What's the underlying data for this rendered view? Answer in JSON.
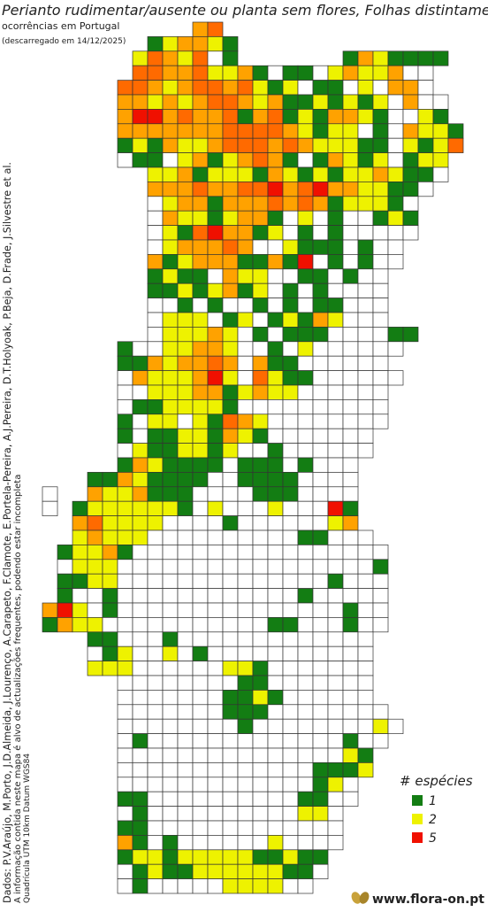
{
  "header": {
    "title": "Perianto rudimentar/ausente ou planta sem flores, Folhas distintamen",
    "subtitle": "ocorrências em Portugal",
    "date": "(descarregado em 14/12/2025)"
  },
  "credits": [
    "Dados: P.V.Araújo, M.Porto, J.D.Almeida, J.Lourenço, A.Carapeto, F.Clamote, E.Portela-Pereira, A.J.Pereira, D.T.Holyoak, P.Beja, D.Frade, J.Silvestre et al.",
    "A informação contida neste mapa é alvo de actualizações frequentes, podendo estar incompleta",
    "Quadrícula UTM 10km Datum WGS84"
  ],
  "legend": {
    "title": "# espécies",
    "items": [
      {
        "value": 1,
        "color": "#137d13"
      },
      {
        "value": 2,
        "color": "#eef200"
      },
      {
        "value": 5,
        "color": "#f01000"
      }
    ]
  },
  "map": {
    "palette": {
      "0": "#ffffff",
      "1": "#137d13",
      "2": "#eef200",
      "3": "#ffa200",
      "4": "#ff6a00",
      "5": "#f01000"
    },
    "grid": [
      [
        null,
        null,
        null,
        null,
        null,
        null,
        null,
        null,
        null,
        null,
        3,
        4
      ],
      [
        null,
        null,
        null,
        null,
        null,
        null,
        null,
        1,
        2,
        3,
        3,
        2,
        1
      ],
      [
        null,
        null,
        null,
        null,
        null,
        null,
        2,
        4,
        3,
        2,
        4,
        0,
        1,
        null,
        null,
        null,
        null,
        null,
        null,
        null,
        1,
        3,
        2,
        1,
        1,
        1,
        1
      ],
      [
        null,
        null,
        null,
        null,
        null,
        null,
        4,
        4,
        3,
        3,
        4,
        2,
        2,
        3,
        1,
        0,
        1,
        1,
        0,
        2,
        3,
        2,
        2,
        3,
        0,
        0
      ],
      [
        null,
        null,
        null,
        null,
        null,
        4,
        4,
        3,
        2,
        3,
        4,
        4,
        3,
        4,
        2,
        1,
        2,
        0,
        1,
        1,
        0,
        2,
        0,
        3,
        3,
        0
      ],
      [
        null,
        null,
        null,
        null,
        null,
        3,
        3,
        2,
        3,
        2,
        3,
        4,
        4,
        3,
        2,
        3,
        1,
        1,
        2,
        1,
        2,
        1,
        2,
        0,
        3,
        0,
        0
      ],
      [
        null,
        null,
        null,
        null,
        null,
        3,
        5,
        5,
        3,
        4,
        3,
        3,
        4,
        1,
        3,
        4,
        1,
        2,
        1,
        3,
        3,
        2,
        1,
        0,
        0,
        2,
        1
      ],
      [
        null,
        null,
        null,
        null,
        null,
        3,
        3,
        3,
        3,
        3,
        3,
        3,
        4,
        4,
        4,
        4,
        3,
        2,
        1,
        2,
        2,
        0,
        1,
        0,
        3,
        2,
        2,
        1
      ],
      [
        null,
        null,
        null,
        null,
        null,
        1,
        2,
        1,
        3,
        2,
        2,
        3,
        4,
        4,
        4,
        3,
        4,
        3,
        2,
        2,
        2,
        1,
        1,
        0,
        2,
        1,
        2,
        4
      ],
      [
        null,
        null,
        null,
        null,
        null,
        0,
        1,
        1,
        0,
        2,
        3,
        1,
        2,
        3,
        4,
        3,
        1,
        0,
        1,
        3,
        2,
        1,
        2,
        0,
        1,
        2,
        2
      ],
      [
        null,
        null,
        null,
        null,
        null,
        null,
        null,
        2,
        2,
        3,
        1,
        2,
        2,
        2,
        1,
        3,
        2,
        1,
        2,
        1,
        2,
        2,
        3,
        2,
        1,
        1,
        0
      ],
      [
        null,
        null,
        null,
        null,
        null,
        null,
        null,
        3,
        3,
        3,
        4,
        3,
        3,
        4,
        4,
        5,
        3,
        4,
        5,
        3,
        3,
        2,
        2,
        1,
        1,
        0
      ],
      [
        null,
        null,
        null,
        null,
        null,
        null,
        null,
        0,
        2,
        3,
        3,
        1,
        3,
        3,
        3,
        4,
        3,
        4,
        3,
        1,
        2,
        2,
        2,
        1,
        0
      ],
      [
        null,
        null,
        null,
        null,
        null,
        null,
        null,
        0,
        3,
        2,
        2,
        1,
        2,
        3,
        3,
        1,
        0,
        2,
        0,
        1,
        0,
        0,
        1,
        2,
        1
      ],
      [
        null,
        null,
        null,
        null,
        null,
        null,
        null,
        0,
        2,
        1,
        4,
        5,
        3,
        3,
        1,
        2,
        0,
        1,
        0,
        1,
        0,
        0,
        0,
        0,
        0
      ],
      [
        null,
        null,
        null,
        null,
        null,
        null,
        null,
        0,
        2,
        3,
        3,
        3,
        4,
        3,
        0,
        0,
        2,
        1,
        1,
        1,
        0,
        1,
        0,
        0
      ],
      [
        null,
        null,
        null,
        null,
        null,
        null,
        null,
        3,
        1,
        2,
        3,
        3,
        3,
        1,
        1,
        3,
        1,
        5,
        0,
        1,
        0,
        1,
        0,
        0
      ],
      [
        null,
        null,
        null,
        null,
        null,
        null,
        null,
        1,
        2,
        1,
        1,
        0,
        3,
        2,
        2,
        0,
        0,
        1,
        1,
        0,
        1,
        0,
        0
      ],
      [
        null,
        null,
        null,
        null,
        null,
        null,
        null,
        1,
        1,
        2,
        1,
        2,
        3,
        1,
        2,
        0,
        1,
        0,
        1,
        0,
        0,
        0,
        0
      ],
      [
        null,
        null,
        null,
        null,
        null,
        null,
        null,
        0,
        0,
        1,
        0,
        1,
        0,
        0,
        1,
        0,
        1,
        0,
        1,
        1,
        0,
        0,
        0
      ],
      [
        null,
        null,
        null,
        null,
        null,
        null,
        null,
        0,
        2,
        2,
        2,
        0,
        1,
        2,
        0,
        1,
        2,
        1,
        3,
        2,
        0,
        0,
        0
      ],
      [
        null,
        null,
        null,
        null,
        null,
        null,
        null,
        0,
        2,
        2,
        2,
        3,
        2,
        0,
        1,
        0,
        1,
        1,
        1,
        0,
        0,
        0,
        0,
        1,
        1
      ],
      [
        null,
        null,
        null,
        null,
        null,
        1,
        0,
        0,
        2,
        2,
        3,
        3,
        2,
        0,
        0,
        1,
        0,
        2,
        0,
        0,
        0,
        0,
        0,
        0
      ],
      [
        null,
        null,
        null,
        null,
        null,
        1,
        1,
        3,
        2,
        3,
        3,
        4,
        3,
        0,
        3,
        1,
        1,
        0,
        0,
        0,
        0,
        0,
        0
      ],
      [
        null,
        null,
        null,
        null,
        null,
        0,
        3,
        2,
        2,
        2,
        3,
        5,
        2,
        0,
        4,
        2,
        1,
        1,
        0,
        0,
        0,
        0,
        0,
        0
      ],
      [
        null,
        null,
        null,
        null,
        null,
        0,
        0,
        2,
        2,
        2,
        3,
        3,
        1,
        2,
        3,
        2,
        2,
        0,
        0,
        0,
        0,
        0,
        0
      ],
      [
        null,
        null,
        null,
        null,
        null,
        0,
        1,
        1,
        2,
        2,
        2,
        2,
        1,
        0,
        0,
        0,
        0,
        0,
        0,
        0,
        0,
        0,
        0
      ],
      [
        null,
        null,
        null,
        null,
        null,
        1,
        0,
        2,
        2,
        0,
        2,
        1,
        4,
        3,
        2,
        0,
        0,
        0,
        0,
        0,
        0,
        0,
        0
      ],
      [
        null,
        null,
        null,
        null,
        null,
        1,
        0,
        1,
        1,
        2,
        2,
        1,
        3,
        2,
        1,
        0,
        0,
        0,
        0,
        0,
        0,
        0
      ],
      [
        null,
        null,
        null,
        null,
        null,
        0,
        2,
        1,
        1,
        2,
        2,
        1,
        2,
        0,
        0,
        1,
        0,
        0,
        0,
        0,
        0,
        0
      ],
      [
        null,
        null,
        null,
        null,
        null,
        1,
        3,
        2,
        1,
        1,
        1,
        1,
        0,
        1,
        1,
        1,
        0,
        1,
        0,
        0,
        0
      ],
      [
        null,
        null,
        null,
        1,
        1,
        3,
        2,
        1,
        1,
        1,
        1,
        0,
        0,
        1,
        1,
        1,
        1,
        0,
        0,
        0,
        0
      ],
      [
        0,
        null,
        null,
        3,
        2,
        2,
        3,
        1,
        1,
        1,
        0,
        0,
        0,
        0,
        1,
        1,
        1,
        0,
        0,
        0,
        0
      ],
      [
        0,
        null,
        1,
        2,
        2,
        2,
        2,
        2,
        2,
        1,
        0,
        2,
        0,
        0,
        0,
        2,
        0,
        0,
        0,
        5,
        1
      ],
      [
        null,
        null,
        3,
        4,
        2,
        2,
        2,
        2,
        0,
        0,
        0,
        0,
        1,
        0,
        0,
        0,
        0,
        0,
        0,
        2,
        3
      ],
      [
        null,
        null,
        2,
        3,
        2,
        2,
        2,
        0,
        0,
        0,
        0,
        0,
        0,
        0,
        0,
        0,
        0,
        1,
        1,
        0,
        0,
        0
      ],
      [
        null,
        1,
        2,
        2,
        3,
        1,
        0,
        0,
        0,
        0,
        0,
        0,
        0,
        0,
        0,
        0,
        0,
        0,
        0,
        0,
        0,
        0,
        0
      ],
      [
        null,
        0,
        2,
        2,
        2,
        0,
        0,
        0,
        0,
        0,
        0,
        0,
        0,
        0,
        0,
        0,
        0,
        0,
        0,
        0,
        0,
        0,
        1
      ],
      [
        null,
        1,
        1,
        2,
        2,
        0,
        0,
        0,
        0,
        0,
        0,
        0,
        0,
        0,
        0,
        0,
        0,
        0,
        0,
        1,
        0,
        0,
        0
      ],
      [
        null,
        1,
        0,
        0,
        1,
        0,
        0,
        0,
        0,
        0,
        0,
        0,
        0,
        0,
        0,
        0,
        0,
        1,
        0,
        0,
        0,
        0,
        0
      ],
      [
        3,
        5,
        2,
        0,
        1,
        0,
        0,
        0,
        0,
        0,
        0,
        0,
        0,
        0,
        0,
        0,
        0,
        0,
        0,
        0,
        1,
        0,
        0
      ],
      [
        1,
        3,
        2,
        2,
        0,
        0,
        0,
        0,
        0,
        0,
        0,
        0,
        0,
        0,
        0,
        1,
        1,
        0,
        0,
        0,
        1,
        0,
        0
      ],
      [
        null,
        null,
        null,
        1,
        1,
        0,
        0,
        0,
        1,
        0,
        0,
        0,
        0,
        0,
        0,
        0,
        0,
        0,
        0,
        0,
        0,
        0
      ],
      [
        null,
        null,
        null,
        0,
        1,
        2,
        0,
        0,
        2,
        0,
        1,
        0,
        0,
        0,
        0,
        0,
        0,
        0,
        0,
        0,
        0,
        0
      ],
      [
        null,
        null,
        null,
        2,
        2,
        2,
        0,
        0,
        0,
        0,
        0,
        0,
        2,
        2,
        1,
        0,
        0,
        0,
        0,
        0,
        0,
        0
      ],
      [
        null,
        null,
        null,
        null,
        null,
        0,
        0,
        0,
        0,
        0,
        0,
        0,
        0,
        1,
        1,
        0,
        0,
        0,
        0,
        0,
        0,
        0
      ],
      [
        null,
        null,
        null,
        null,
        null,
        0,
        0,
        0,
        0,
        0,
        0,
        0,
        1,
        1,
        2,
        1,
        0,
        0,
        0,
        0,
        0,
        0
      ],
      [
        null,
        null,
        null,
        null,
        null,
        0,
        0,
        0,
        0,
        0,
        0,
        0,
        1,
        1,
        1,
        0,
        0,
        0,
        0,
        0,
        0,
        0,
        0
      ],
      [
        null,
        null,
        null,
        null,
        null,
        0,
        0,
        0,
        0,
        0,
        0,
        0,
        0,
        1,
        0,
        0,
        0,
        0,
        0,
        0,
        0,
        0,
        2,
        0
      ],
      [
        null,
        null,
        null,
        null,
        null,
        0,
        1,
        0,
        0,
        0,
        0,
        0,
        0,
        0,
        0,
        0,
        0,
        0,
        0,
        0,
        1,
        0,
        0
      ],
      [
        null,
        null,
        null,
        null,
        null,
        0,
        0,
        0,
        0,
        0,
        0,
        0,
        0,
        0,
        0,
        0,
        0,
        0,
        0,
        0,
        2,
        1
      ],
      [
        null,
        null,
        null,
        null,
        null,
        0,
        0,
        0,
        0,
        0,
        0,
        0,
        0,
        0,
        0,
        0,
        0,
        0,
        1,
        1,
        1,
        2
      ],
      [
        null,
        null,
        null,
        null,
        null,
        0,
        0,
        0,
        0,
        0,
        0,
        0,
        0,
        0,
        0,
        0,
        0,
        0,
        1,
        2,
        0
      ],
      [
        null,
        null,
        null,
        null,
        null,
        1,
        1,
        0,
        0,
        0,
        0,
        0,
        0,
        0,
        0,
        0,
        0,
        1,
        1,
        0,
        0
      ],
      [
        null,
        null,
        null,
        null,
        null,
        0,
        1,
        0,
        0,
        0,
        0,
        0,
        0,
        0,
        0,
        0,
        0,
        2,
        2,
        0
      ],
      [
        null,
        null,
        null,
        null,
        null,
        1,
        1,
        0,
        0,
        0,
        0,
        0,
        0,
        0,
        0,
        0,
        0,
        0,
        0,
        0
      ],
      [
        null,
        null,
        null,
        null,
        null,
        3,
        1,
        0,
        1,
        0,
        0,
        0,
        0,
        0,
        0,
        2,
        0,
        0,
        0,
        0
      ],
      [
        null,
        null,
        null,
        null,
        null,
        1,
        2,
        2,
        1,
        2,
        2,
        2,
        2,
        2,
        1,
        1,
        2,
        1,
        1
      ],
      [
        null,
        null,
        null,
        null,
        null,
        0,
        1,
        2,
        1,
        1,
        2,
        2,
        2,
        2,
        2,
        2,
        1,
        1,
        0
      ],
      [
        null,
        null,
        null,
        null,
        null,
        0,
        1,
        0,
        0,
        0,
        0,
        0,
        2,
        2,
        2,
        2,
        0,
        0
      ]
    ]
  },
  "footer": {
    "site": "www.flora-on.pt"
  }
}
